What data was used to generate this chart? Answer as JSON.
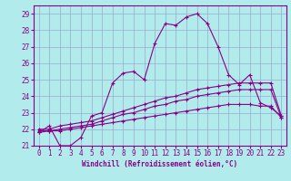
{
  "xlabel": "Windchill (Refroidissement éolien,°C)",
  "background_color": "#b2ebeb",
  "line_color": "#880088",
  "grid_color": "#99aacc",
  "ylim": [
    21,
    29.5
  ],
  "xlim": [
    -0.5,
    23.5
  ],
  "yticks": [
    21,
    22,
    23,
    24,
    25,
    26,
    27,
    28,
    29
  ],
  "xticks": [
    0,
    1,
    2,
    3,
    4,
    5,
    6,
    7,
    8,
    9,
    10,
    11,
    12,
    13,
    14,
    15,
    16,
    17,
    18,
    19,
    20,
    21,
    22,
    23
  ],
  "series": [
    [
      21.8,
      22.2,
      21.0,
      21.0,
      21.5,
      22.8,
      23.0,
      24.8,
      25.4,
      25.5,
      25.0,
      27.2,
      28.4,
      28.3,
      28.8,
      29.0,
      28.4,
      27.0,
      25.3,
      24.7,
      25.3,
      23.6,
      23.3,
      22.8
    ],
    [
      22.0,
      22.0,
      22.2,
      22.3,
      22.4,
      22.5,
      22.7,
      22.9,
      23.1,
      23.3,
      23.5,
      23.7,
      23.9,
      24.0,
      24.2,
      24.4,
      24.5,
      24.6,
      24.7,
      24.8,
      24.8,
      24.8,
      24.8,
      22.8
    ],
    [
      21.9,
      21.9,
      22.0,
      22.1,
      22.2,
      22.3,
      22.5,
      22.7,
      22.9,
      23.0,
      23.2,
      23.4,
      23.5,
      23.7,
      23.8,
      24.0,
      24.1,
      24.2,
      24.3,
      24.4,
      24.4,
      24.4,
      24.4,
      22.7
    ],
    [
      21.8,
      21.9,
      21.9,
      22.0,
      22.1,
      22.2,
      22.3,
      22.4,
      22.5,
      22.6,
      22.7,
      22.8,
      22.9,
      23.0,
      23.1,
      23.2,
      23.3,
      23.4,
      23.5,
      23.5,
      23.5,
      23.4,
      23.4,
      22.7
    ]
  ]
}
